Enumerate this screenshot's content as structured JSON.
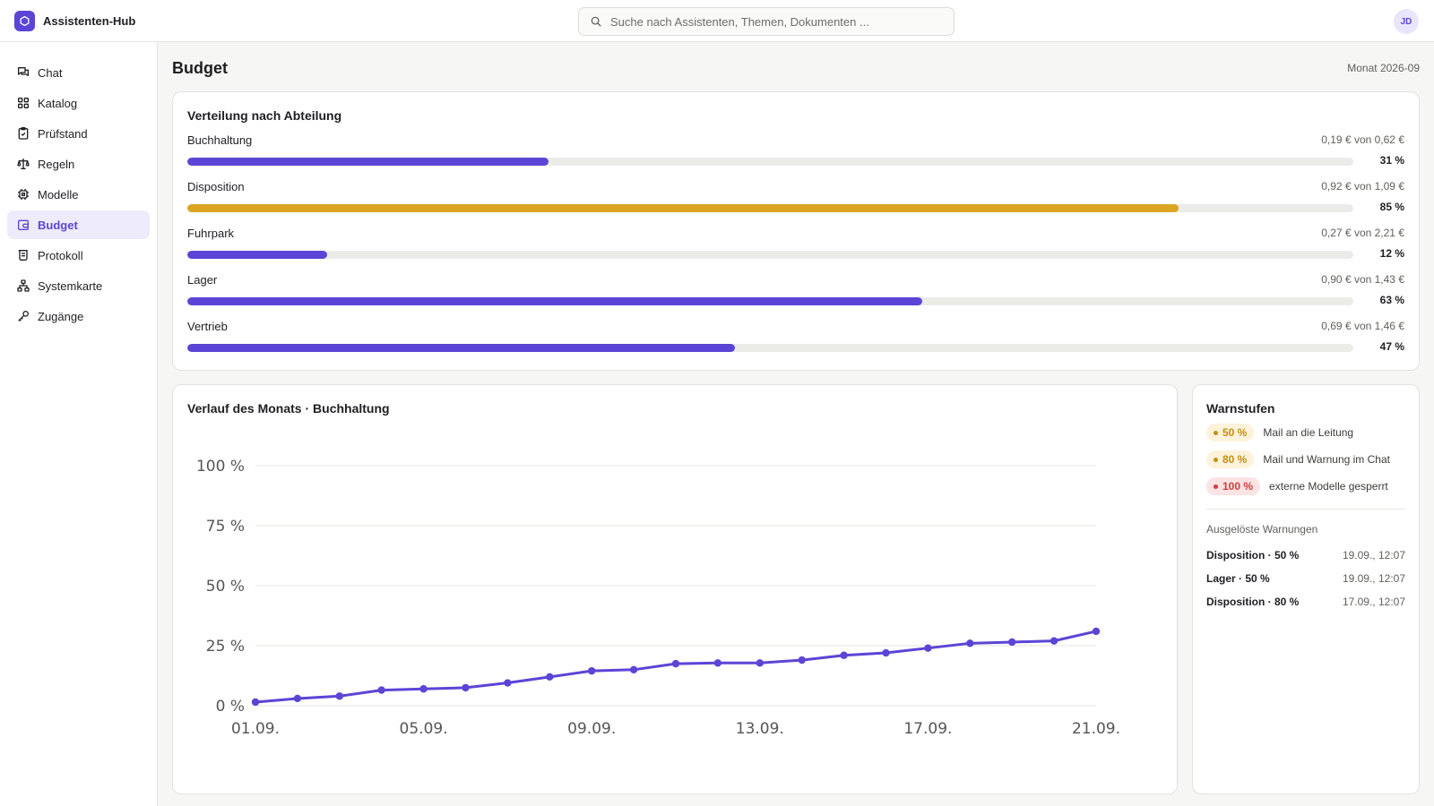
{
  "app": {
    "name": "Assistenten-Hub",
    "avatar": "JD",
    "search_placeholder": "Suche nach Assistenten, Themen, Dokumenten ..."
  },
  "sidebar": {
    "items": [
      {
        "label": "Chat",
        "icon": "chat-icon",
        "active": false
      },
      {
        "label": "Katalog",
        "icon": "grid-icon",
        "active": false
      },
      {
        "label": "Prüfstand",
        "icon": "clipboard-check-icon",
        "active": false
      },
      {
        "label": "Regeln",
        "icon": "scale-icon",
        "active": false
      },
      {
        "label": "Modelle",
        "icon": "cpu-icon",
        "active": false
      },
      {
        "label": "Budget",
        "icon": "wallet-icon",
        "active": true
      },
      {
        "label": "Protokoll",
        "icon": "scroll-icon",
        "active": false
      },
      {
        "label": "Systemkarte",
        "icon": "network-icon",
        "active": false
      },
      {
        "label": "Zugänge",
        "icon": "key-icon",
        "active": false
      }
    ]
  },
  "page": {
    "title": "Budget",
    "period": "Monat 2026-09"
  },
  "distribution": {
    "title": "Verteilung nach Abteilung",
    "colors": {
      "normal": "#5b45d6",
      "warning": "#dba524",
      "track": "#ebebe8"
    },
    "departments": [
      {
        "name": "Buchhaltung",
        "amount": "0,19 € von 0,62 €",
        "percent_label": "31 %",
        "fraction": 0.31,
        "warning": false
      },
      {
        "name": "Disposition",
        "amount": "0,92 € von 1,09 €",
        "percent_label": "85 %",
        "fraction": 0.85,
        "warning": true
      },
      {
        "name": "Fuhrpark",
        "amount": "0,27 € von 2,21 €",
        "percent_label": "12 %",
        "fraction": 0.12,
        "warning": false
      },
      {
        "name": "Lager",
        "amount": "0,90 € von 1,43 €",
        "percent_label": "63 %",
        "fraction": 0.63,
        "warning": false
      },
      {
        "name": "Vertrieb",
        "amount": "0,69 € von 1,46 €",
        "percent_label": "47 %",
        "fraction": 0.47,
        "warning": false
      }
    ]
  },
  "trend": {
    "title": "Verlauf des Monats · Buchhaltung"
  },
  "chart_data": {
    "type": "line",
    "title": "Verlauf des Monats · Buchhaltung",
    "x": [
      "01.09.",
      "02.09.",
      "03.09.",
      "04.09.",
      "05.09.",
      "06.09.",
      "07.09.",
      "08.09.",
      "09.09.",
      "10.09.",
      "11.09.",
      "12.09.",
      "13.09.",
      "14.09.",
      "15.09.",
      "16.09.",
      "17.09.",
      "18.09.",
      "19.09.",
      "20.09.",
      "21.09."
    ],
    "x_tick_labels": [
      "01.09.",
      "05.09.",
      "09.09.",
      "13.09.",
      "17.09.",
      "21.09."
    ],
    "series": [
      {
        "values": [
          1.5,
          3,
          4,
          6.5,
          7,
          7.5,
          9.5,
          12,
          14.5,
          15,
          17.5,
          17.8,
          17.8,
          19,
          21,
          22,
          24,
          26,
          26.5,
          27,
          31
        ]
      }
    ],
    "y_ticks": [
      0,
      25,
      50,
      75,
      100
    ],
    "y_tick_labels": [
      "0 %",
      "25 %",
      "50 %",
      "75 %",
      "100 %"
    ],
    "ylim": [
      0,
      100
    ],
    "grid": true,
    "color": "#5b45d6"
  },
  "warnings": {
    "title": "Warnstufen",
    "levels": [
      {
        "label": "50 %",
        "text": "Mail an die Leitung",
        "severity": "amber"
      },
      {
        "label": "80 %",
        "text": "Mail und Warnung im Chat",
        "severity": "amber"
      },
      {
        "label": "100 %",
        "text": "externe Modelle gesperrt",
        "severity": "red"
      }
    ],
    "triggered_title": "Ausgelöste Warnungen",
    "triggered": [
      {
        "name": "Disposition · 50 %",
        "time": "19.09., 12:07"
      },
      {
        "name": "Lager · 50 %",
        "time": "19.09., 12:07"
      },
      {
        "name": "Disposition · 80 %",
        "time": "17.09., 12:07"
      }
    ]
  }
}
